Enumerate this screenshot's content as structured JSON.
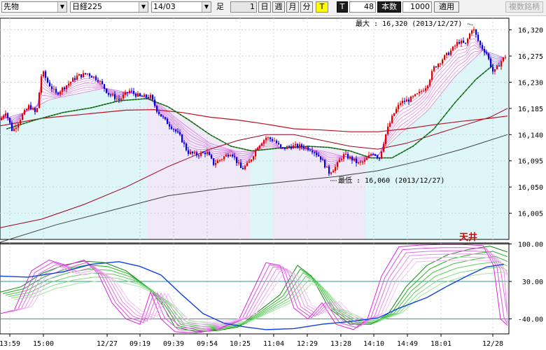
{
  "toolbar": {
    "market": "先物",
    "instrument": "日経225",
    "contract": "14/03",
    "bar_label": "足",
    "interval_value": "1",
    "btn_day": "日",
    "btn_week": "週",
    "btn_month": "月",
    "btn_minute": "分",
    "btn_tick": "T",
    "t_label": "T",
    "t_value": "48",
    "count_label": "本数",
    "count_value": "1000",
    "apply": "適用",
    "multi": "複数銘柄"
  },
  "chart_data": {
    "type": "candlestick",
    "price_axis": {
      "ticks": [
        16320,
        16275,
        16230,
        16185,
        16140,
        16095,
        16050,
        16005
      ],
      "range": [
        15960,
        16340
      ]
    },
    "oscillator_axis": {
      "ticks": [
        "100.00",
        "30.00",
        "-40.00"
      ],
      "range": [
        -68,
        102
      ]
    },
    "time_labels": [
      "13:59",
      "15:00",
      "12/27",
      "09:19",
      "09:39",
      "09:54",
      "10:25",
      "11:04",
      "12:29",
      "13:28",
      "14:10",
      "14:49",
      "18:01",
      "12/28"
    ],
    "annotations": {
      "max": "最大 : 16,320 (2013/12/27)",
      "min": "最低 : 16,060 (2013/12/27)",
      "top_label": "天井"
    },
    "price_points": [
      [
        0,
        16165
      ],
      [
        8,
        16180
      ],
      [
        18,
        16145
      ],
      [
        30,
        16170
      ],
      [
        42,
        16190
      ],
      [
        52,
        16175
      ],
      [
        60,
        16250
      ],
      [
        68,
        16230
      ],
      [
        80,
        16210
      ],
      [
        95,
        16225
      ],
      [
        110,
        16240
      ],
      [
        125,
        16245
      ],
      [
        140,
        16235
      ],
      [
        155,
        16210
      ],
      [
        170,
        16200
      ],
      [
        185,
        16215
      ],
      [
        200,
        16205
      ],
      [
        215,
        16205
      ],
      [
        225,
        16180
      ],
      [
        235,
        16165
      ],
      [
        248,
        16150
      ],
      [
        258,
        16135
      ],
      [
        268,
        16110
      ],
      [
        280,
        16105
      ],
      [
        295,
        16110
      ],
      [
        305,
        16090
      ],
      [
        318,
        16100
      ],
      [
        330,
        16110
      ],
      [
        345,
        16080
      ],
      [
        355,
        16090
      ],
      [
        368,
        16120
      ],
      [
        380,
        16135
      ],
      [
        392,
        16130
      ],
      [
        402,
        16115
      ],
      [
        415,
        16120
      ],
      [
        430,
        16120
      ],
      [
        445,
        16115
      ],
      [
        458,
        16100
      ],
      [
        470,
        16075
      ],
      [
        480,
        16085
      ],
      [
        490,
        16105
      ],
      [
        500,
        16100
      ],
      [
        512,
        16090
      ],
      [
        522,
        16095
      ],
      [
        532,
        16110
      ],
      [
        542,
        16100
      ],
      [
        552,
        16145
      ],
      [
        562,
        16175
      ],
      [
        572,
        16195
      ],
      [
        585,
        16200
      ],
      [
        598,
        16210
      ],
      [
        610,
        16225
      ],
      [
        620,
        16255
      ],
      [
        632,
        16270
      ],
      [
        645,
        16285
      ],
      [
        655,
        16300
      ],
      [
        665,
        16295
      ],
      [
        675,
        16325
      ],
      [
        685,
        16295
      ],
      [
        695,
        16280
      ],
      [
        705,
        16245
      ],
      [
        715,
        16265
      ],
      [
        722,
        16275
      ]
    ],
    "band_center": [
      [
        0,
        16165
      ],
      [
        40,
        16180
      ],
      [
        70,
        16200
      ],
      [
        110,
        16210
      ],
      [
        150,
        16220
      ],
      [
        200,
        16208
      ],
      [
        230,
        16190
      ],
      [
        260,
        16160
      ],
      [
        300,
        16125
      ],
      [
        340,
        16110
      ],
      [
        380,
        16115
      ],
      [
        420,
        16118
      ],
      [
        460,
        16112
      ],
      [
        500,
        16100
      ],
      [
        540,
        16105
      ],
      [
        570,
        16140
      ],
      [
        610,
        16180
      ],
      [
        650,
        16240
      ],
      [
        690,
        16285
      ],
      [
        725,
        16270
      ]
    ],
    "green_ma": [
      [
        10,
        16150
      ],
      [
        50,
        16165
      ],
      [
        90,
        16178
      ],
      [
        130,
        16186
      ],
      [
        170,
        16198
      ],
      [
        210,
        16202
      ],
      [
        240,
        16188
      ],
      [
        270,
        16165
      ],
      [
        300,
        16140
      ],
      [
        330,
        16120
      ],
      [
        360,
        16112
      ],
      [
        400,
        16117
      ],
      [
        440,
        16120
      ],
      [
        470,
        16118
      ],
      [
        500,
        16112
      ],
      [
        530,
        16100
      ],
      [
        560,
        16100
      ],
      [
        590,
        16120
      ],
      [
        620,
        16150
      ],
      [
        650,
        16195
      ],
      [
        680,
        16235
      ],
      [
        705,
        16260
      ]
    ],
    "red_ma": [
      [
        0,
        16155
      ],
      [
        60,
        16168
      ],
      [
        120,
        16175
      ],
      [
        180,
        16182
      ],
      [
        220,
        16183
      ],
      [
        260,
        16178
      ],
      [
        300,
        16170
      ],
      [
        340,
        16165
      ],
      [
        380,
        16158
      ],
      [
        420,
        16150
      ],
      [
        460,
        16148
      ],
      [
        500,
        16145
      ],
      [
        540,
        16145
      ],
      [
        580,
        16150
      ],
      [
        620,
        16157
      ],
      [
        660,
        16163
      ],
      [
        700,
        16168
      ],
      [
        725,
        16172
      ]
    ],
    "dark_red_ma": [
      [
        0,
        15980
      ],
      [
        60,
        15995
      ],
      [
        120,
        16020
      ],
      [
        180,
        16050
      ],
      [
        240,
        16085
      ],
      [
        300,
        16115
      ],
      [
        340,
        16130
      ],
      [
        380,
        16140
      ],
      [
        420,
        16140
      ],
      [
        460,
        16130
      ],
      [
        500,
        16120
      ],
      [
        540,
        16115
      ],
      [
        580,
        16125
      ],
      [
        620,
        16140
      ],
      [
        660,
        16155
      ],
      [
        700,
        16170
      ],
      [
        725,
        16185
      ]
    ],
    "gray_ma": [
      [
        0,
        15955
      ],
      [
        80,
        15985
      ],
      [
        160,
        16010
      ],
      [
        240,
        16035
      ],
      [
        320,
        16048
      ],
      [
        400,
        16058
      ],
      [
        480,
        16068
      ],
      [
        540,
        16078
      ],
      [
        600,
        16095
      ],
      [
        660,
        16115
      ],
      [
        725,
        16140
      ]
    ],
    "osc_blue": [
      [
        0,
        40
      ],
      [
        40,
        38
      ],
      [
        90,
        48
      ],
      [
        130,
        62
      ],
      [
        170,
        67
      ],
      [
        200,
        58
      ],
      [
        230,
        42
      ],
      [
        260,
        5
      ],
      [
        290,
        -30
      ],
      [
        320,
        -48
      ],
      [
        350,
        -55
      ],
      [
        380,
        -60
      ],
      [
        420,
        -58
      ],
      [
        460,
        -50
      ],
      [
        500,
        -45
      ],
      [
        540,
        -38
      ],
      [
        570,
        -20
      ],
      [
        610,
        0
      ],
      [
        640,
        22
      ],
      [
        670,
        42
      ],
      [
        695,
        57
      ],
      [
        720,
        62
      ]
    ],
    "osc_green": [
      [
        0,
        10
      ],
      [
        30,
        20
      ],
      [
        60,
        45
      ],
      [
        90,
        60
      ],
      [
        120,
        68
      ],
      [
        150,
        65
      ],
      [
        180,
        50
      ],
      [
        210,
        20
      ],
      [
        230,
        -10
      ],
      [
        250,
        -55
      ],
      [
        280,
        -64
      ],
      [
        310,
        -62
      ],
      [
        340,
        -55
      ],
      [
        370,
        -25
      ],
      [
        400,
        5
      ],
      [
        425,
        60
      ],
      [
        445,
        40
      ],
      [
        470,
        -20
      ],
      [
        500,
        -50
      ],
      [
        530,
        -50
      ],
      [
        555,
        -30
      ],
      [
        580,
        20
      ],
      [
        610,
        60
      ],
      [
        640,
        80
      ],
      [
        670,
        90
      ],
      [
        700,
        96
      ],
      [
        725,
        85
      ]
    ],
    "osc_pink": [
      [
        0,
        -30
      ],
      [
        20,
        -25
      ],
      [
        45,
        50
      ],
      [
        70,
        70
      ],
      [
        95,
        60
      ],
      [
        120,
        70
      ],
      [
        140,
        45
      ],
      [
        160,
        -10
      ],
      [
        180,
        -40
      ],
      [
        200,
        -50
      ],
      [
        215,
        10
      ],
      [
        230,
        -40
      ],
      [
        250,
        -64
      ],
      [
        280,
        -66
      ],
      [
        310,
        -60
      ],
      [
        340,
        -45
      ],
      [
        360,
        10
      ],
      [
        380,
        65
      ],
      [
        400,
        60
      ],
      [
        420,
        -20
      ],
      [
        440,
        -40
      ],
      [
        460,
        -10
      ],
      [
        480,
        -50
      ],
      [
        505,
        -60
      ],
      [
        525,
        -40
      ],
      [
        545,
        40
      ],
      [
        570,
        95
      ],
      [
        600,
        98
      ],
      [
        630,
        99
      ],
      [
        660,
        99
      ],
      [
        690,
        97
      ],
      [
        705,
        60
      ],
      [
        715,
        -40
      ],
      [
        725,
        -52
      ]
    ]
  }
}
